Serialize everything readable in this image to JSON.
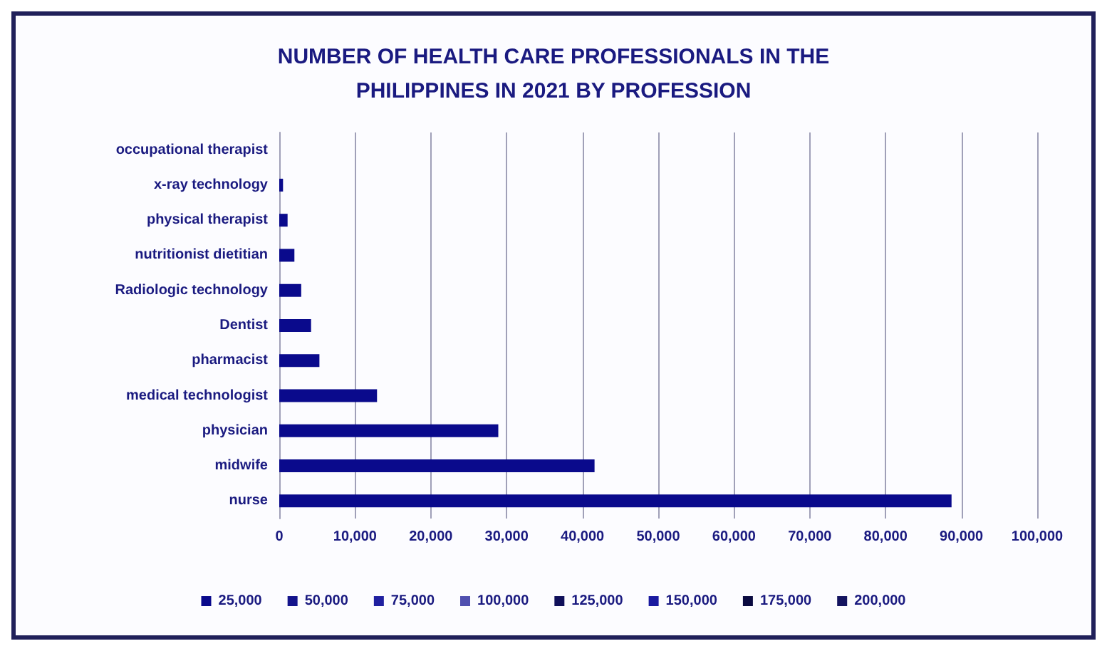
{
  "chart_data": {
    "type": "bar",
    "orientation": "horizontal",
    "title": "NUMBER OF HEALTH CARE PROFESSIONALS IN THE\nPHILIPPINES IN 2021 BY PROFESSION",
    "categories": [
      "occupational therapist",
      "x-ray technology",
      "physical therapist",
      "nutritionist dietitian",
      "Radiologic technology",
      "Dentist",
      "pharmacist",
      "medical technologist",
      "physician",
      "midwife",
      "nurse"
    ],
    "series": [
      {
        "name": "25,000",
        "color": "#0a0a8c",
        "values": [
          0,
          500,
          1100,
          2000,
          2900,
          4200,
          5300,
          12900,
          28900,
          41600,
          88700
        ]
      },
      {
        "name": "50,000",
        "color": "#14148c",
        "values": [
          null,
          null,
          null,
          null,
          null,
          null,
          null,
          null,
          null,
          null,
          null
        ]
      },
      {
        "name": "75,000",
        "color": "#2020a0",
        "values": [
          null,
          null,
          null,
          null,
          null,
          null,
          null,
          null,
          null,
          null,
          null
        ]
      },
      {
        "name": "100,000",
        "color": "#5050b0",
        "values": [
          null,
          null,
          null,
          null,
          null,
          null,
          null,
          null,
          null,
          null,
          null
        ]
      },
      {
        "name": "125,000",
        "color": "#10105a",
        "values": [
          null,
          null,
          null,
          null,
          null,
          null,
          null,
          null,
          null,
          null,
          null
        ]
      },
      {
        "name": "150,000",
        "color": "#1a1aa0",
        "values": [
          null,
          null,
          null,
          null,
          null,
          null,
          null,
          null,
          null,
          null,
          null
        ]
      },
      {
        "name": "175,000",
        "color": "#0a0a40",
        "values": [
          null,
          null,
          null,
          null,
          null,
          null,
          null,
          null,
          null,
          null,
          null
        ]
      },
      {
        "name": "200,000",
        "color": "#141460",
        "values": [
          null,
          null,
          null,
          null,
          null,
          null,
          null,
          null,
          null,
          null,
          null
        ]
      }
    ],
    "xlim": [
      0,
      100000
    ],
    "xticks": [
      0,
      {
        "value": 10000,
        "label": "10,000"
      },
      {
        "value": 20000,
        "label": "20,000"
      },
      {
        "value": 30000,
        "label": "30,000"
      },
      {
        "value": 40000,
        "label": "40,000"
      },
      {
        "value": 50000,
        "label": "50,000"
      },
      {
        "value": 60000,
        "label": "60,000"
      },
      {
        "value": 70000,
        "label": "70,000"
      },
      {
        "value": 80000,
        "label": "80,000"
      },
      {
        "value": 90000,
        "label": "90,000"
      },
      {
        "value": 100000,
        "label": "100,000"
      }
    ],
    "grid": "x",
    "legend": "bottom"
  }
}
